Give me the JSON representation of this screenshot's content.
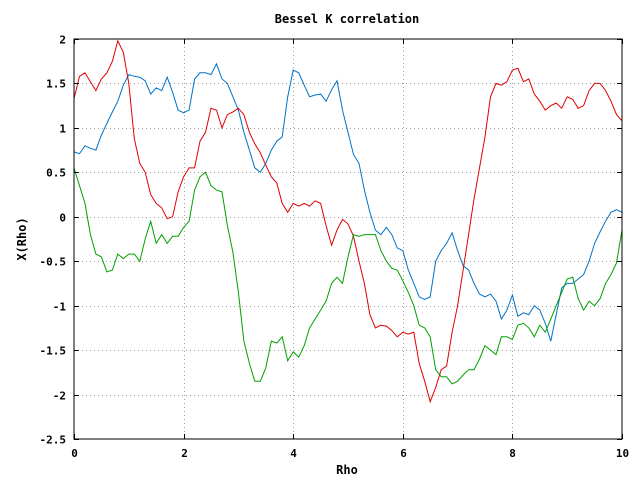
{
  "chart_data": {
    "type": "line",
    "title": "Bessel K correlation",
    "xlabel": "Rho",
    "ylabel": "X(Rho)",
    "xlim": [
      0,
      10
    ],
    "ylim": [
      -2.5,
      2
    ],
    "xticks": [
      0,
      2,
      4,
      6,
      8,
      10
    ],
    "yticks": [
      2,
      1.5,
      1,
      0.5,
      0,
      -0.5,
      -1,
      -1.5,
      -2,
      -2.5
    ],
    "grid": true,
    "legend": "none",
    "series": [
      {
        "color": "#0072c8",
        "x": [
          0,
          0.1,
          0.2,
          0.3,
          0.4,
          0.5,
          0.6,
          0.7,
          0.8,
          0.9,
          1.0,
          1.1,
          1.2,
          1.3,
          1.4,
          1.5,
          1.6,
          1.7,
          1.8,
          1.9,
          2.0,
          2.1,
          2.2,
          2.3,
          2.4,
          2.5,
          2.6,
          2.7,
          2.8,
          2.9,
          3.0,
          3.1,
          3.2,
          3.3,
          3.4,
          3.5,
          3.6,
          3.7,
          3.8,
          3.9,
          4.0,
          4.1,
          4.2,
          4.3,
          4.4,
          4.5,
          4.6,
          4.7,
          4.8,
          4.9,
          5.0,
          5.1,
          5.2,
          5.3,
          5.4,
          5.5,
          5.6,
          5.7,
          5.8,
          5.9,
          6.0,
          6.1,
          6.2,
          6.3,
          6.4,
          6.5,
          6.6,
          6.7,
          6.8,
          6.9,
          7.0,
          7.1,
          7.2,
          7.3,
          7.4,
          7.5,
          7.6,
          7.7,
          7.8,
          7.9,
          8.0,
          8.1,
          8.2,
          8.3,
          8.4,
          8.5,
          8.6,
          8.7,
          8.8,
          8.9,
          9.0,
          9.1,
          9.2,
          9.3,
          9.4,
          9.5,
          9.6,
          9.7,
          9.8,
          9.9,
          10.0
        ],
        "y": [
          0.73,
          0.71,
          0.8,
          0.77,
          0.75,
          0.92,
          1.05,
          1.18,
          1.3,
          1.48,
          1.6,
          1.58,
          1.57,
          1.53,
          1.38,
          1.45,
          1.42,
          1.57,
          1.4,
          1.2,
          1.17,
          1.2,
          1.55,
          1.62,
          1.62,
          1.6,
          1.72,
          1.55,
          1.5,
          1.35,
          1.2,
          0.95,
          0.75,
          0.55,
          0.5,
          0.6,
          0.75,
          0.85,
          0.9,
          1.35,
          1.65,
          1.62,
          1.48,
          1.35,
          1.37,
          1.38,
          1.3,
          1.43,
          1.53,
          1.2,
          0.95,
          0.7,
          0.6,
          0.3,
          0.05,
          -0.15,
          -0.2,
          -0.12,
          -0.2,
          -0.35,
          -0.38,
          -0.6,
          -0.75,
          -0.9,
          -0.93,
          -0.9,
          -0.5,
          -0.38,
          -0.3,
          -0.18,
          -0.38,
          -0.55,
          -0.6,
          -0.75,
          -0.87,
          -0.9,
          -0.87,
          -0.95,
          -1.15,
          -1.05,
          -0.88,
          -1.12,
          -1.08,
          -1.1,
          -1.0,
          -1.05,
          -1.2,
          -1.4,
          -1.1,
          -0.8,
          -0.75,
          -0.75,
          -0.7,
          -0.65,
          -0.5,
          -0.3,
          -0.17,
          -0.05,
          0.05,
          0.08,
          0.05
        ]
      },
      {
        "color": "#e00000",
        "x": [
          0,
          0.1,
          0.2,
          0.3,
          0.4,
          0.5,
          0.6,
          0.7,
          0.8,
          0.9,
          1.0,
          1.1,
          1.2,
          1.3,
          1.4,
          1.5,
          1.6,
          1.7,
          1.8,
          1.9,
          2.0,
          2.1,
          2.2,
          2.3,
          2.4,
          2.5,
          2.6,
          2.7,
          2.8,
          2.9,
          3.0,
          3.1,
          3.2,
          3.3,
          3.4,
          3.5,
          3.6,
          3.7,
          3.8,
          3.9,
          4.0,
          4.1,
          4.2,
          4.3,
          4.4,
          4.5,
          4.6,
          4.7,
          4.8,
          4.9,
          5.0,
          5.1,
          5.2,
          5.3,
          5.4,
          5.5,
          5.6,
          5.7,
          5.8,
          5.9,
          6.0,
          6.1,
          6.2,
          6.3,
          6.4,
          6.5,
          6.6,
          6.7,
          6.8,
          6.9,
          7.0,
          7.1,
          7.2,
          7.3,
          7.4,
          7.5,
          7.6,
          7.7,
          7.8,
          7.9,
          8.0,
          8.1,
          8.2,
          8.3,
          8.4,
          8.5,
          8.6,
          8.7,
          8.8,
          8.9,
          9.0,
          9.1,
          9.2,
          9.3,
          9.4,
          9.5,
          9.6,
          9.7,
          9.8,
          9.9,
          10.0
        ],
        "y": [
          1.33,
          1.58,
          1.62,
          1.52,
          1.42,
          1.55,
          1.62,
          1.75,
          1.98,
          1.85,
          1.5,
          0.88,
          0.6,
          0.5,
          0.25,
          0.15,
          0.1,
          -0.02,
          0.0,
          0.28,
          0.45,
          0.55,
          0.55,
          0.85,
          0.95,
          1.22,
          1.2,
          1.0,
          1.15,
          1.18,
          1.22,
          1.15,
          0.95,
          0.82,
          0.72,
          0.58,
          0.45,
          0.38,
          0.15,
          0.05,
          0.15,
          0.12,
          0.15,
          0.12,
          0.18,
          0.15,
          -0.1,
          -0.32,
          -0.15,
          -0.03,
          -0.08,
          -0.22,
          -0.5,
          -0.75,
          -1.1,
          -1.25,
          -1.22,
          -1.23,
          -1.28,
          -1.35,
          -1.3,
          -1.32,
          -1.3,
          -1.65,
          -1.85,
          -2.08,
          -1.92,
          -1.72,
          -1.68,
          -1.3,
          -1.0,
          -0.6,
          -0.2,
          0.2,
          0.55,
          0.9,
          1.35,
          1.5,
          1.48,
          1.52,
          1.65,
          1.67,
          1.52,
          1.55,
          1.38,
          1.3,
          1.2,
          1.25,
          1.28,
          1.22,
          1.35,
          1.32,
          1.22,
          1.25,
          1.42,
          1.5,
          1.5,
          1.42,
          1.3,
          1.15,
          1.08
        ]
      },
      {
        "color": "#00a000",
        "x": [
          0,
          0.1,
          0.2,
          0.3,
          0.4,
          0.5,
          0.6,
          0.7,
          0.8,
          0.9,
          1.0,
          1.1,
          1.2,
          1.3,
          1.4,
          1.5,
          1.6,
          1.7,
          1.8,
          1.9,
          2.0,
          2.1,
          2.2,
          2.3,
          2.4,
          2.5,
          2.6,
          2.7,
          2.8,
          2.9,
          3.0,
          3.1,
          3.2,
          3.3,
          3.4,
          3.5,
          3.6,
          3.7,
          3.8,
          3.9,
          4.0,
          4.1,
          4.2,
          4.3,
          4.4,
          4.5,
          4.6,
          4.7,
          4.8,
          4.9,
          5.0,
          5.1,
          5.2,
          5.3,
          5.4,
          5.5,
          5.6,
          5.7,
          5.8,
          5.9,
          6.0,
          6.1,
          6.2,
          6.3,
          6.4,
          6.5,
          6.6,
          6.7,
          6.8,
          6.9,
          7.0,
          7.1,
          7.2,
          7.3,
          7.4,
          7.5,
          7.6,
          7.7,
          7.8,
          7.9,
          8.0,
          8.1,
          8.2,
          8.3,
          8.4,
          8.5,
          8.6,
          8.7,
          8.8,
          8.9,
          9.0,
          9.1,
          9.2,
          9.3,
          9.4,
          9.5,
          9.6,
          9.7,
          9.8,
          9.9,
          10.0
        ],
        "y": [
          0.55,
          0.35,
          0.15,
          -0.2,
          -0.42,
          -0.45,
          -0.62,
          -0.6,
          -0.42,
          -0.47,
          -0.42,
          -0.42,
          -0.5,
          -0.25,
          -0.05,
          -0.3,
          -0.2,
          -0.3,
          -0.22,
          -0.22,
          -0.12,
          -0.05,
          0.3,
          0.45,
          0.5,
          0.35,
          0.3,
          0.28,
          -0.1,
          -0.4,
          -0.85,
          -1.4,
          -1.65,
          -1.85,
          -1.85,
          -1.7,
          -1.4,
          -1.42,
          -1.35,
          -1.62,
          -1.52,
          -1.58,
          -1.45,
          -1.25,
          -1.15,
          -1.05,
          -0.95,
          -0.75,
          -0.68,
          -0.75,
          -0.45,
          -0.2,
          -0.22,
          -0.2,
          -0.2,
          -0.2,
          -0.38,
          -0.5,
          -0.58,
          -0.6,
          -0.72,
          -0.85,
          -1.0,
          -1.22,
          -1.25,
          -1.35,
          -1.72,
          -1.8,
          -1.8,
          -1.88,
          -1.85,
          -1.78,
          -1.72,
          -1.72,
          -1.6,
          -1.45,
          -1.5,
          -1.55,
          -1.35,
          -1.35,
          -1.38,
          -1.22,
          -1.2,
          -1.25,
          -1.35,
          -1.22,
          -1.3,
          -1.15,
          -1.0,
          -0.85,
          -0.7,
          -0.68,
          -0.92,
          -1.05,
          -0.95,
          -1.0,
          -0.92,
          -0.75,
          -0.65,
          -0.52,
          -0.15
        ]
      }
    ]
  }
}
